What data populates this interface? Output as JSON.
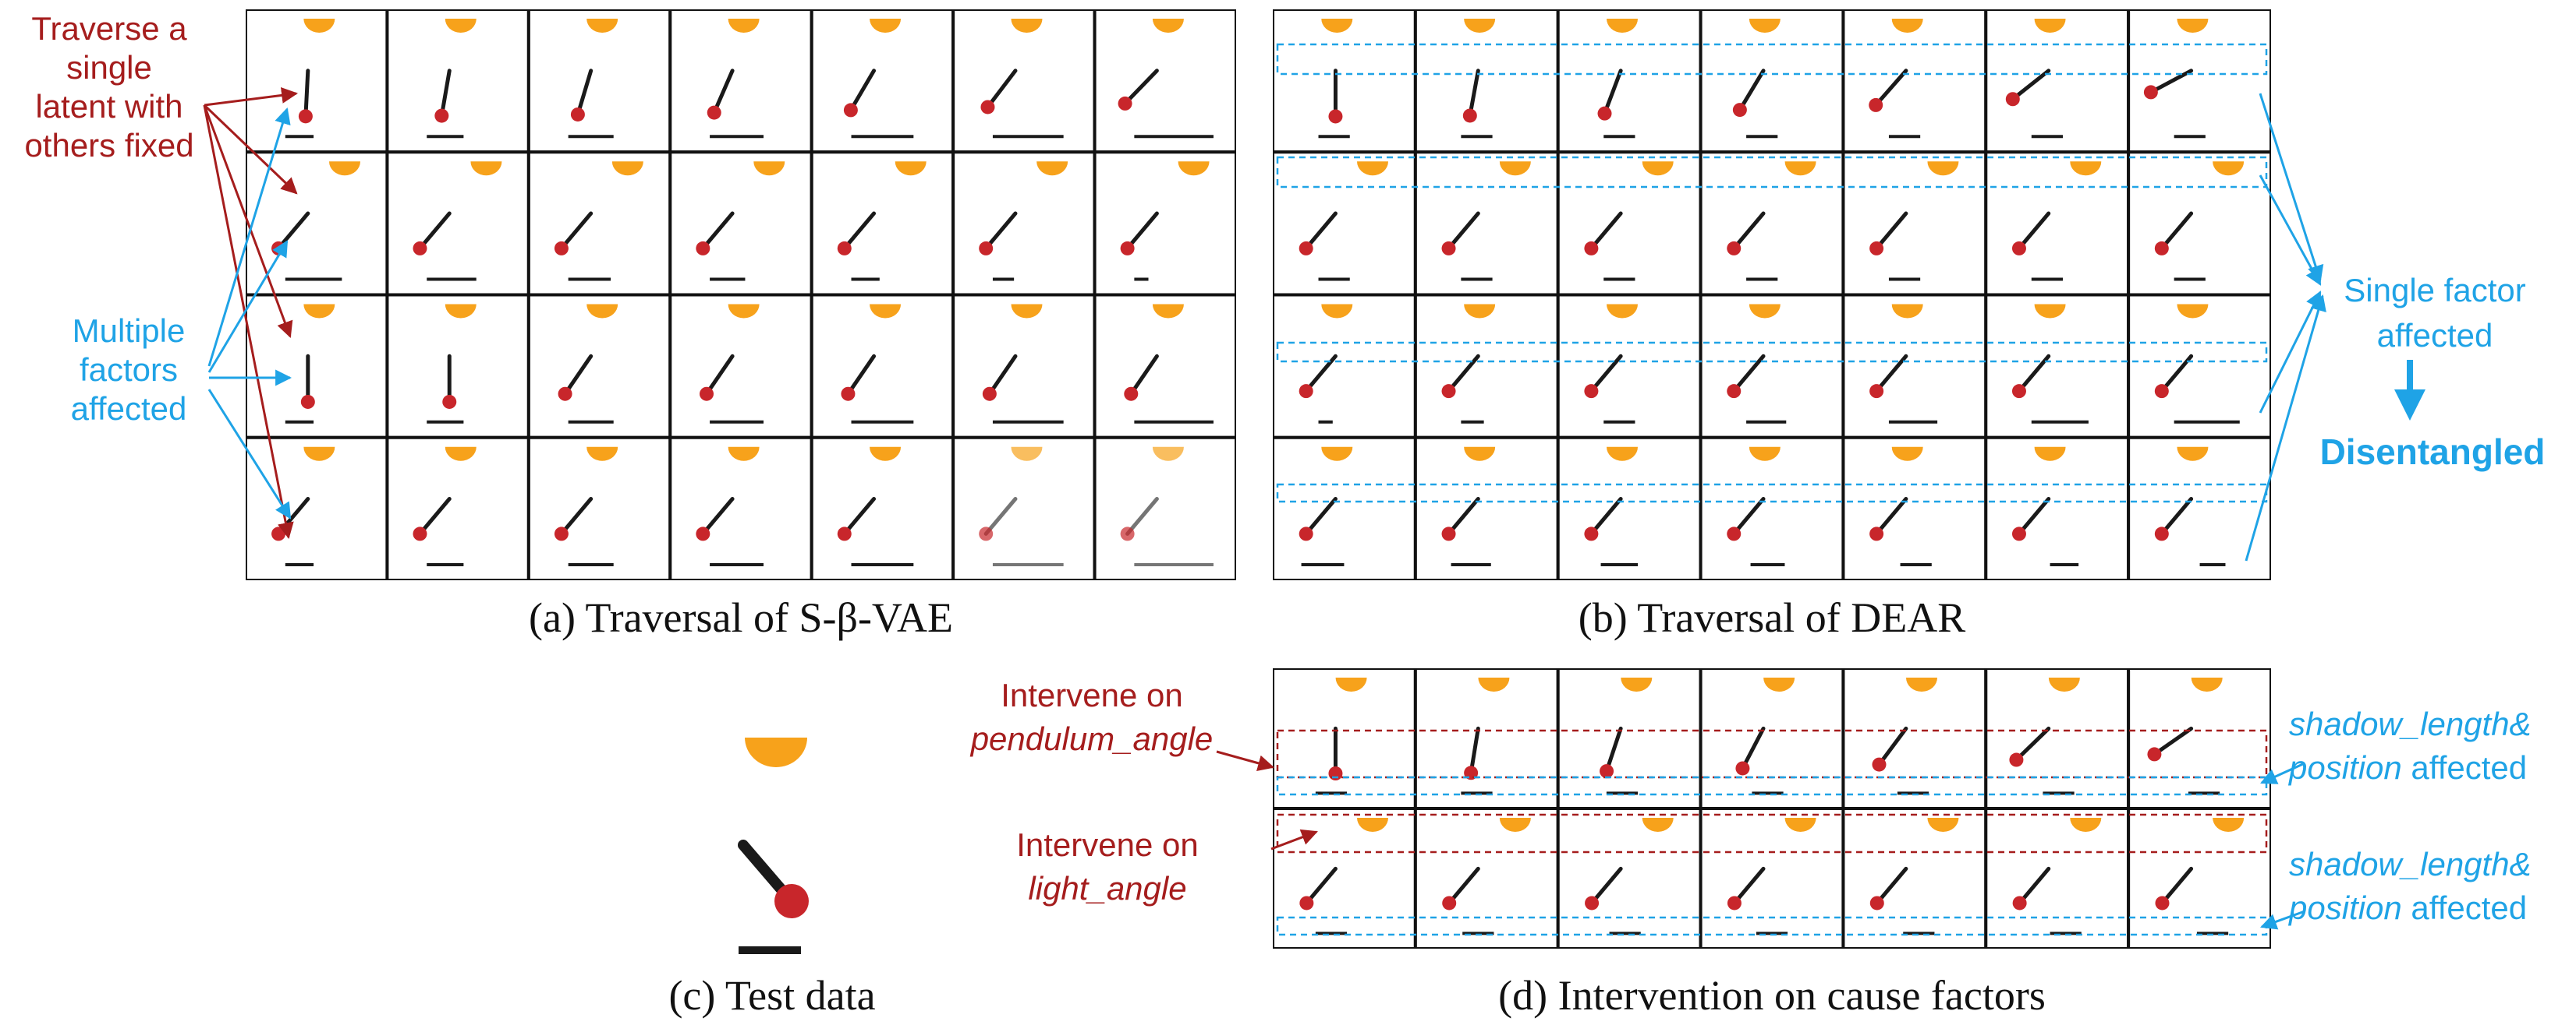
{
  "captions": {
    "a": "(a) Traversal of S-β-VAE",
    "b": "(b) Traversal of DEAR",
    "c": "(c) Test data",
    "d": "(d) Intervention on cause factors"
  },
  "annotations": {
    "traverse": [
      "Traverse a",
      "single",
      "latent with",
      "others fixed"
    ],
    "multiple": [
      "Multiple",
      "factors",
      "affected"
    ],
    "single_factor": [
      "Single factor",
      "affected"
    ],
    "disentangled": "Disentangled",
    "intervene_pendulum": {
      "line1": "Intervene on",
      "line2": "pendulum_angle"
    },
    "intervene_light": {
      "line1": "Intervene on",
      "line2": "light_angle"
    },
    "shadow_affected_1": {
      "line1": "shadow_length&",
      "line2_italic": "position",
      "line2_rest": " affected"
    },
    "shadow_affected_2": {
      "line1": "shadow_length&",
      "line2_italic": "position",
      "line2_rest": " affected"
    }
  },
  "colors": {
    "sun": "#f7a21b",
    "ball": "#c8262b",
    "stick": "#1a1a1a",
    "annotation_red": "#a51d1d",
    "annotation_blue": "#1fa3e6",
    "grid_border": "#111111"
  }
}
